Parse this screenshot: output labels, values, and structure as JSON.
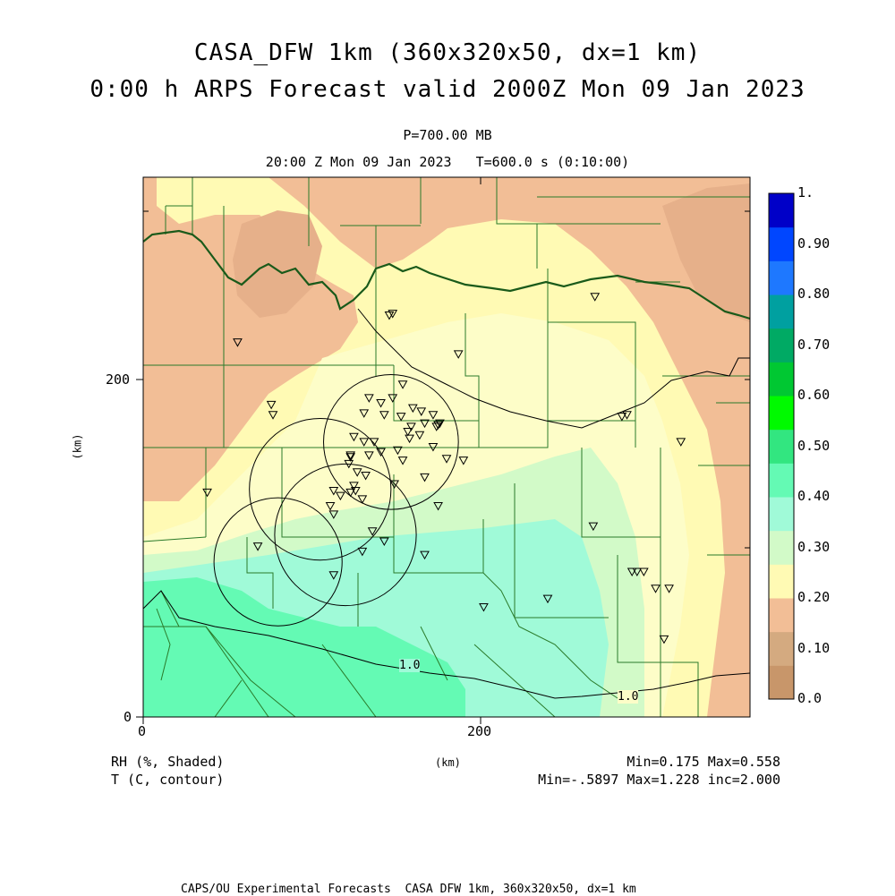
{
  "header": {
    "title_line1": "CASA_DFW 1km (360x320x50, dx=1 km)",
    "title_line2": "0:00 h ARPS Forecast valid 2000Z Mon 09 Jan 2023",
    "pressure_level": "P=700.00 MB",
    "time_line": "20:00 Z Mon 09 Jan 2023   T=600.0 s (0:10:00)"
  },
  "axes": {
    "x_ticks": [
      "0",
      "200"
    ],
    "y_ticks": [
      "0",
      "200"
    ],
    "x_unit": "(km)",
    "y_unit": "(km)"
  },
  "colorbar": {
    "labels": [
      "0.0",
      "0.10",
      "0.20",
      "0.30",
      "0.40",
      "0.50",
      "0.60",
      "0.70",
      "0.80",
      "0.90",
      "1."
    ],
    "colors": [
      "#c8966a",
      "#d4aa80",
      "#f2be96",
      "#fffab4",
      "#d2fac8",
      "#a0fad8",
      "#64fab4",
      "#32e680",
      "#00fa00",
      "#00c832",
      "#00aa64",
      "#00a0a0",
      "#1e78ff",
      "#0046ff",
      "#0000c8"
    ]
  },
  "contour_labels": [
    "1.0",
    "1.0"
  ],
  "footer": {
    "field1": "RH (%, Shaded)",
    "field2": "T (C, contour)",
    "x_unit": "(km)",
    "stats1": "Min=0.175 Max=0.558",
    "stats2": "Min=-.5897 Max=1.228 inc=2.000",
    "credit": "CAPS/OU Experimental Forecasts  CASA DFW 1km, 360x320x50, dx=1 km"
  },
  "map_content": {
    "domain_extent_km": {
      "x": [
        0,
        360
      ],
      "y": [
        0,
        320
      ]
    },
    "radar_rings_km": [
      {
        "cx": 80,
        "cy": 92,
        "r": 38
      },
      {
        "cx": 105,
        "cy": 135,
        "r": 42
      },
      {
        "cx": 120,
        "cy": 108,
        "r": 42
      },
      {
        "cx": 147,
        "cy": 163,
        "r": 40
      }
    ],
    "station_markers_km": [
      [
        56,
        222
      ],
      [
        76,
        185
      ],
      [
        77,
        179
      ],
      [
        38,
        133
      ],
      [
        146,
        238
      ],
      [
        148,
        239
      ],
      [
        187,
        215
      ],
      [
        268,
        249
      ],
      [
        154,
        197
      ],
      [
        134,
        189
      ],
      [
        141,
        186
      ],
      [
        148,
        189
      ],
      [
        160,
        183
      ],
      [
        165,
        181
      ],
      [
        131,
        180
      ],
      [
        143,
        179
      ],
      [
        153,
        178
      ],
      [
        172,
        179
      ],
      [
        167,
        174
      ],
      [
        176,
        174
      ],
      [
        175,
        173
      ],
      [
        159,
        172
      ],
      [
        164,
        167
      ],
      [
        174,
        172
      ],
      [
        125,
        166
      ],
      [
        131,
        163
      ],
      [
        137,
        163
      ],
      [
        123,
        154
      ],
      [
        157,
        169
      ],
      [
        158,
        165
      ],
      [
        151,
        158
      ],
      [
        141,
        157
      ],
      [
        134,
        155
      ],
      [
        123,
        155
      ],
      [
        154,
        152
      ],
      [
        122,
        150
      ],
      [
        132,
        143
      ],
      [
        127,
        145
      ],
      [
        125,
        137
      ],
      [
        149,
        138
      ],
      [
        167,
        142
      ],
      [
        172,
        160
      ],
      [
        180,
        153
      ],
      [
        190,
        152
      ],
      [
        123,
        133
      ],
      [
        126,
        134
      ],
      [
        113,
        134
      ],
      [
        117,
        131
      ],
      [
        111,
        125
      ],
      [
        113,
        120
      ],
      [
        175,
        125
      ],
      [
        130,
        129
      ],
      [
        136,
        110
      ],
      [
        143,
        104
      ],
      [
        130,
        98
      ],
      [
        167,
        96
      ],
      [
        68,
        101
      ],
      [
        113,
        84
      ],
      [
        202,
        65
      ],
      [
        240,
        70
      ],
      [
        267,
        113
      ],
      [
        290,
        86
      ],
      [
        293,
        86
      ],
      [
        297,
        86
      ],
      [
        304,
        76
      ],
      [
        312,
        76
      ],
      [
        309,
        46
      ],
      [
        287,
        179
      ],
      [
        284,
        178
      ],
      [
        319,
        163
      ]
    ]
  }
}
